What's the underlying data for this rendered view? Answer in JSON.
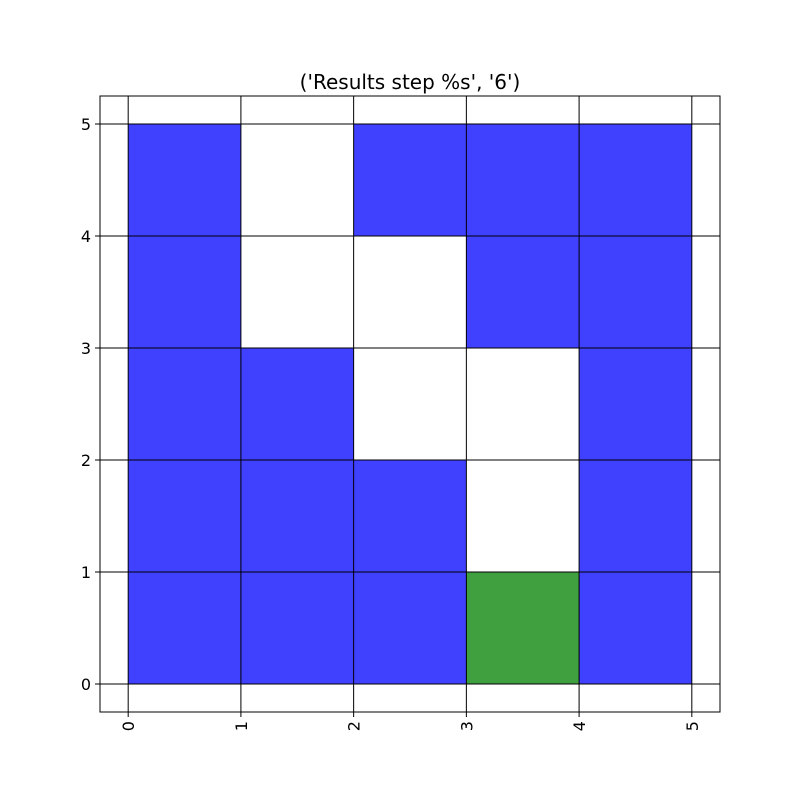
{
  "chart_data": {
    "type": "heatmap",
    "title": "('Results step %s', '6')",
    "xlabel": "",
    "ylabel": "",
    "xlim": [
      -0.25,
      5.25
    ],
    "ylim": [
      -0.25,
      5.25
    ],
    "x_ticks": [
      "0",
      "1",
      "2",
      "3",
      "4",
      "5"
    ],
    "y_ticks": [
      "0",
      "1",
      "2",
      "3",
      "4",
      "5"
    ],
    "x_tick_rotation": "vertical",
    "grid": true,
    "colors": {
      "blue": "#4040ff",
      "green": "#40a040",
      "empty": "#ffffff",
      "grid": "#000000"
    },
    "cells": [
      {
        "x": 0,
        "y": 4,
        "color": "blue"
      },
      {
        "x": 2,
        "y": 4,
        "color": "blue"
      },
      {
        "x": 3,
        "y": 4,
        "color": "blue"
      },
      {
        "x": 4,
        "y": 4,
        "color": "blue"
      },
      {
        "x": 0,
        "y": 3,
        "color": "blue"
      },
      {
        "x": 3,
        "y": 3,
        "color": "blue"
      },
      {
        "x": 4,
        "y": 3,
        "color": "blue"
      },
      {
        "x": 0,
        "y": 2,
        "color": "blue"
      },
      {
        "x": 1,
        "y": 2,
        "color": "blue"
      },
      {
        "x": 4,
        "y": 2,
        "color": "blue"
      },
      {
        "x": 0,
        "y": 1,
        "color": "blue"
      },
      {
        "x": 1,
        "y": 1,
        "color": "blue"
      },
      {
        "x": 2,
        "y": 1,
        "color": "blue"
      },
      {
        "x": 4,
        "y": 1,
        "color": "blue"
      },
      {
        "x": 0,
        "y": 0,
        "color": "blue"
      },
      {
        "x": 1,
        "y": 0,
        "color": "blue"
      },
      {
        "x": 2,
        "y": 0,
        "color": "blue"
      },
      {
        "x": 3,
        "y": 0,
        "color": "green"
      },
      {
        "x": 4,
        "y": 0,
        "color": "blue"
      }
    ]
  }
}
